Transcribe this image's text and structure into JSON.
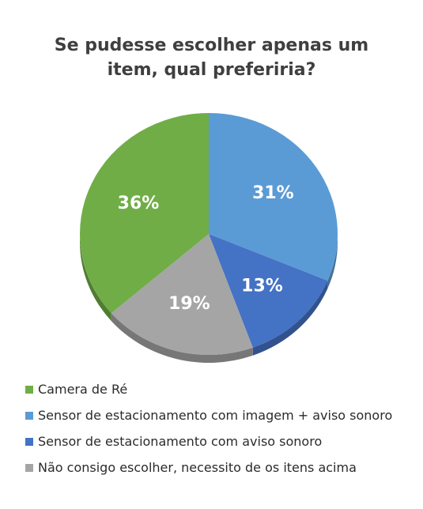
{
  "chart_data": {
    "type": "pie",
    "title_lines": [
      "Se pudesse escolher apenas um",
      "item, qual preferiria?"
    ],
    "slices": [
      {
        "name": "Sensor de estacionamento com imagem + aviso sonoro",
        "value": 31,
        "label": "31%",
        "color": "#5b9bd5"
      },
      {
        "name": "Sensor de estacionamento com aviso sonoro",
        "value": 13,
        "label": "13%",
        "color": "#4472c4"
      },
      {
        "name": "Não consigo escolher, necessito de os itens acima",
        "value": 19,
        "label": "19%",
        "color": "#a5a5a5"
      },
      {
        "name": "Camera de Ré",
        "value": 36,
        "label": "36%",
        "color": "#70ad47"
      }
    ],
    "legend_order": [
      3,
      0,
      1,
      2
    ],
    "legend_position": "bottom"
  }
}
